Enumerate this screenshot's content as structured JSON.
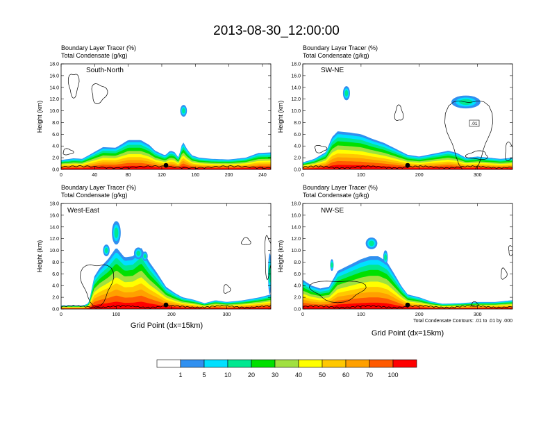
{
  "page_title": "2013-08-30_12:00:00",
  "chart_data": [
    {
      "type": "heatmap",
      "panel": "top-left",
      "line1": "Boundary Layer Tracer   (%)",
      "line2": "Total Condensate   (g/kg)",
      "label": "South-North",
      "ylabel": "Height (km)",
      "xlabel": "",
      "xlim": [
        0,
        250
      ],
      "ylim": [
        0,
        18
      ],
      "xticks": [
        0,
        40,
        80,
        120,
        160,
        200,
        240
      ],
      "yticks": [
        0,
        2,
        4,
        6,
        8,
        10,
        12,
        14,
        16,
        18
      ],
      "marker_x": 125,
      "profile": [
        [
          0,
          1.6
        ],
        [
          15,
          1.9
        ],
        [
          25,
          1.8
        ],
        [
          35,
          2.6
        ],
        [
          50,
          3.8
        ],
        [
          65,
          3.7
        ],
        [
          80,
          5.0
        ],
        [
          95,
          5.0
        ],
        [
          105,
          4.2
        ],
        [
          112,
          3.2
        ],
        [
          118,
          2.8
        ],
        [
          124,
          2.4
        ],
        [
          130,
          3.2
        ],
        [
          135,
          3.0
        ],
        [
          140,
          2.0
        ],
        [
          145,
          4.8
        ],
        [
          150,
          3.5
        ],
        [
          156,
          2.4
        ],
        [
          165,
          2.0
        ],
        [
          180,
          1.8
        ],
        [
          200,
          1.7
        ],
        [
          220,
          2.0
        ],
        [
          235,
          2.8
        ],
        [
          250,
          2.9
        ]
      ],
      "blobs": [
        [
          146,
          10.0,
          4,
          1.0
        ]
      ]
    },
    {
      "type": "heatmap",
      "panel": "top-right",
      "line1": "Boundary Layer Tracer   (%)",
      "line2": "Total Condensate   (g/kg)",
      "label": "SW-NE",
      "ylabel": "Height (km)",
      "xlabel": "",
      "xlim": [
        0,
        360
      ],
      "ylim": [
        0,
        18
      ],
      "xticks": [
        0,
        100,
        200,
        300
      ],
      "yticks": [
        0,
        2,
        4,
        6,
        8,
        10,
        12,
        14,
        16,
        18
      ],
      "marker_x": 180,
      "contour_label": ".01",
      "profile": [
        [
          0,
          1.2
        ],
        [
          20,
          1.8
        ],
        [
          40,
          3.0
        ],
        [
          50,
          5.5
        ],
        [
          60,
          6.5
        ],
        [
          80,
          6.3
        ],
        [
          100,
          6.0
        ],
        [
          120,
          5.2
        ],
        [
          140,
          4.5
        ],
        [
          160,
          3.5
        ],
        [
          180,
          2.5
        ],
        [
          200,
          2.2
        ],
        [
          230,
          2.8
        ],
        [
          250,
          3.2
        ],
        [
          265,
          2.8
        ],
        [
          280,
          2.0
        ],
        [
          300,
          2.2
        ],
        [
          320,
          2.0
        ],
        [
          340,
          1.8
        ],
        [
          360,
          2.0
        ]
      ],
      "blobs": [
        [
          75,
          13.0,
          6,
          1.2
        ],
        [
          280,
          11.5,
          25,
          1.1
        ]
      ]
    },
    {
      "type": "heatmap",
      "panel": "bottom-left",
      "line1": "Boundary Layer Tracer   (%)",
      "line2": "Total Condensate   (g/kg)",
      "label": "West-East",
      "ylabel": "Height (km)",
      "xlabel": "Grid Point (dx=15km)",
      "xlim": [
        0,
        380
      ],
      "ylim": [
        0,
        18
      ],
      "xticks": [
        0,
        100,
        200,
        300
      ],
      "yticks": [
        0,
        2,
        4,
        6,
        8,
        10,
        12,
        14,
        16,
        18
      ],
      "marker_x": 190,
      "profile": [
        [
          0,
          0.6
        ],
        [
          40,
          0.6
        ],
        [
          50,
          1.0
        ],
        [
          60,
          5.5
        ],
        [
          70,
          7.0
        ],
        [
          85,
          8.5
        ],
        [
          100,
          10.5
        ],
        [
          115,
          8.8
        ],
        [
          130,
          9.0
        ],
        [
          145,
          10.5
        ],
        [
          160,
          8.0
        ],
        [
          175,
          6.0
        ],
        [
          190,
          3.8
        ],
        [
          205,
          2.8
        ],
        [
          220,
          2.0
        ],
        [
          240,
          1.6
        ],
        [
          260,
          1.0
        ],
        [
          280,
          1.5
        ],
        [
          300,
          1.2
        ],
        [
          330,
          1.5
        ],
        [
          360,
          2.0
        ],
        [
          380,
          2.5
        ]
      ],
      "blobs": [
        [
          100,
          13.0,
          8,
          2.0
        ],
        [
          82,
          10.0,
          6,
          1.0
        ],
        [
          140,
          9.5,
          8,
          1.0
        ],
        [
          152,
          9.0,
          5,
          0.8
        ],
        [
          378,
          6.0,
          3,
          3.5
        ]
      ]
    },
    {
      "type": "heatmap",
      "panel": "bottom-right",
      "line1": "Boundary Layer Tracer   (%)",
      "line2": "Total Condensate   (g/kg)",
      "label": "NW-SE",
      "ylabel": "Height (km)",
      "xlabel": "Grid Point (dx=15km)",
      "xlim": [
        0,
        360
      ],
      "ylim": [
        0,
        18
      ],
      "xticks": [
        0,
        100,
        200,
        300
      ],
      "yticks": [
        0,
        2,
        4,
        6,
        8,
        10,
        12,
        14,
        16,
        18
      ],
      "marker_x": 180,
      "footnote": "Total Condensate Contours: .01 to .01 by .000",
      "profile": [
        [
          0,
          5.0
        ],
        [
          15,
          4.0
        ],
        [
          30,
          3.5
        ],
        [
          45,
          3.8
        ],
        [
          60,
          6.5
        ],
        [
          80,
          7.5
        ],
        [
          100,
          8.5
        ],
        [
          115,
          9.0
        ],
        [
          130,
          9.0
        ],
        [
          145,
          8.0
        ],
        [
          160,
          5.5
        ],
        [
          170,
          3.8
        ],
        [
          180,
          2.5
        ],
        [
          200,
          2.0
        ],
        [
          220,
          1.3
        ],
        [
          240,
          0.9
        ],
        [
          270,
          1.0
        ],
        [
          300,
          1.2
        ],
        [
          330,
          1.2
        ],
        [
          360,
          1.5
        ]
      ],
      "blobs": [
        [
          118,
          11.2,
          10,
          1.0
        ],
        [
          142,
          8.8,
          4,
          1.2
        ],
        [
          50,
          7.5,
          3,
          1.0
        ]
      ]
    }
  ],
  "colorbar": {
    "labels": [
      "1",
      "5",
      "10",
      "20",
      "30",
      "40",
      "50",
      "60",
      "70",
      "100"
    ],
    "colors": [
      "#ffffff",
      "#3090f0",
      "#00e0ff",
      "#00e890",
      "#00e000",
      "#a0e040",
      "#ffff00",
      "#ffc800",
      "#ffa000",
      "#ff5a00",
      "#ff0000"
    ]
  },
  "colors": {
    "contour": "#000000",
    "terrain": "#000000",
    "marker": "#000000"
  }
}
